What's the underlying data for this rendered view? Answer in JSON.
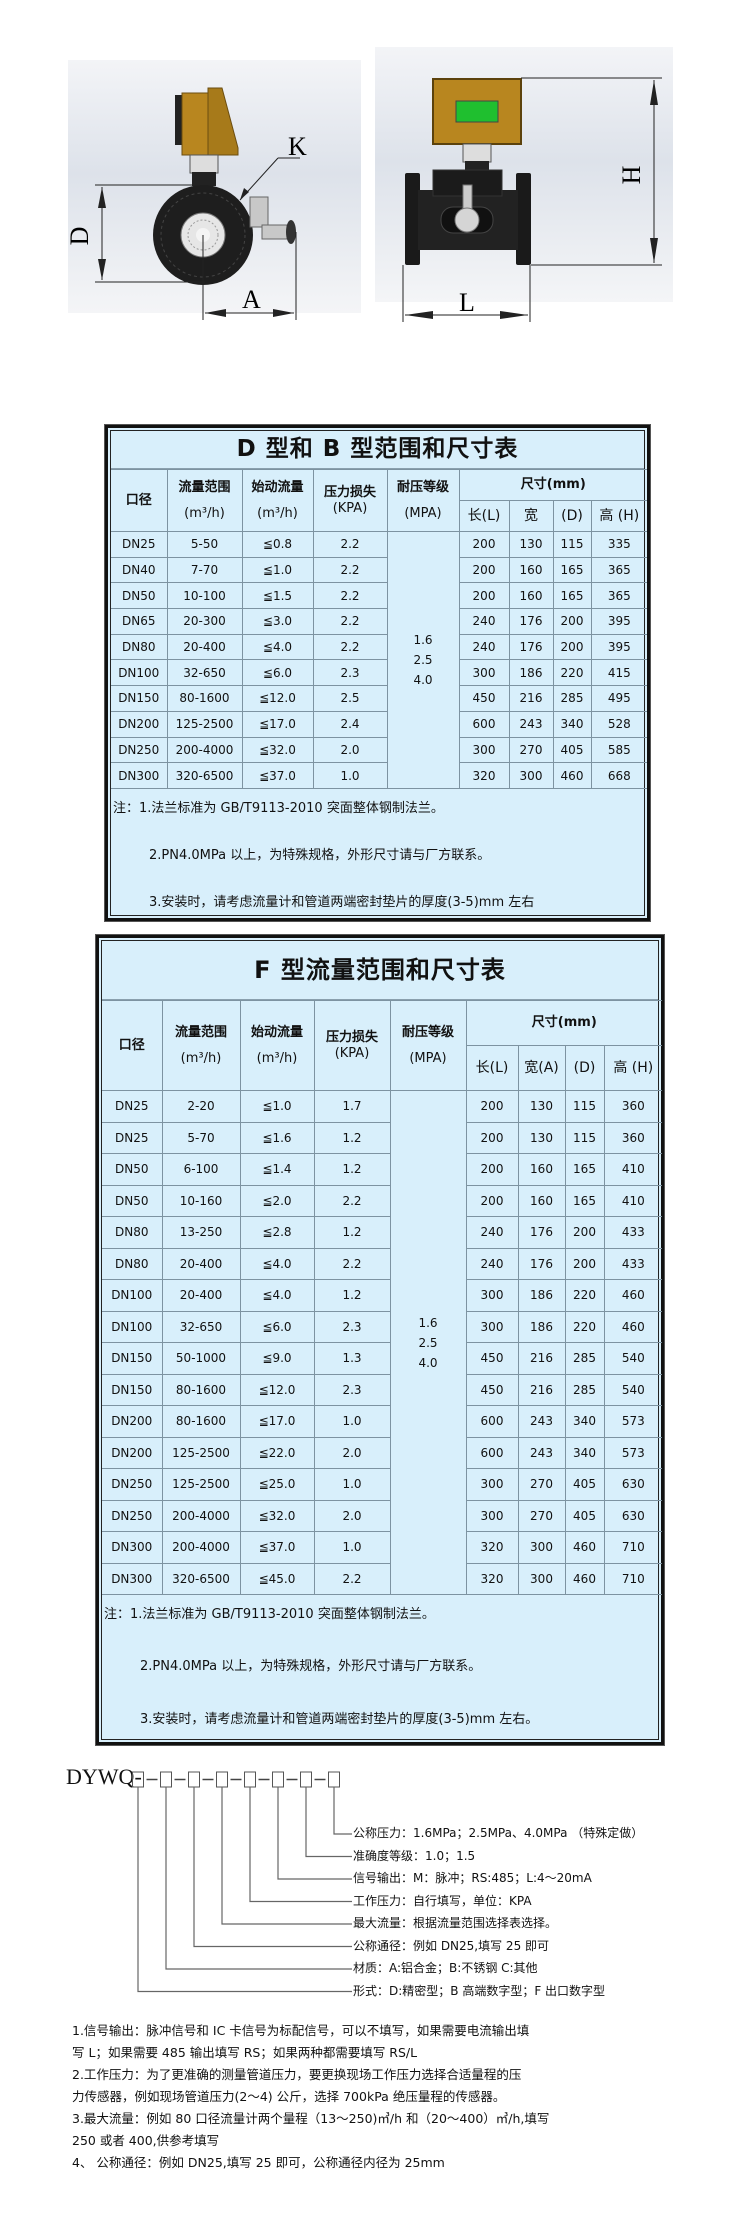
{
  "drawings": {
    "side_view_labels": {
      "d": "D",
      "k": "K",
      "a": "A"
    },
    "front_view_labels": {
      "h": "H",
      "l": "L"
    },
    "colors": {
      "housing": "#b8861f",
      "display": "#1fbf2f",
      "body": "#1a1a1a",
      "backdrop": "#e4e8ee"
    }
  },
  "d_table": {
    "title": "D 型和 B 型范围和尺寸表",
    "headers": {
      "caliber": "口径",
      "flow_range": "流量范围",
      "flow_range_unit": "(m³/h)",
      "start_flow": "始动流量",
      "start_flow_unit": "(m³/h)",
      "pressure_loss": "压力损失",
      "pressure_loss_unit": "(KPA)",
      "pressure_grade": "耐压等级",
      "pressure_grade_unit": "(MPA)",
      "size": "尺寸(mm)",
      "length": "长(L)",
      "width": "宽",
      "d": "(D)",
      "height": "高 (H)"
    },
    "pressure_levels": [
      "1.6",
      "2.5",
      "4.0"
    ],
    "rows": [
      [
        "DN25",
        "5-50",
        "≦0.8",
        "2.2",
        "200",
        "130",
        "115",
        "335"
      ],
      [
        "DN40",
        "7-70",
        "≦1.0",
        "2.2",
        "200",
        "160",
        "165",
        "365"
      ],
      [
        "DN50",
        "10-100",
        "≦1.5",
        "2.2",
        "200",
        "160",
        "165",
        "365"
      ],
      [
        "DN65",
        "20-300",
        "≦3.0",
        "2.2",
        "240",
        "176",
        "200",
        "395"
      ],
      [
        "DN80",
        "20-400",
        "≦4.0",
        "2.2",
        "240",
        "176",
        "200",
        "395"
      ],
      [
        "DN100",
        "32-650",
        "≦6.0",
        "2.3",
        "300",
        "186",
        "220",
        "415"
      ],
      [
        "DN150",
        "80-1600",
        "≦12.0",
        "2.5",
        "450",
        "216",
        "285",
        "495"
      ],
      [
        "DN200",
        "125-2500",
        "≦17.0",
        "2.4",
        "600",
        "243",
        "340",
        "528"
      ],
      [
        "DN250",
        "200-4000",
        "≦32.0",
        "2.0",
        "300",
        "270",
        "405",
        "585"
      ],
      [
        "DN300",
        "320-6500",
        "≦37.0",
        "1.0",
        "320",
        "300",
        "460",
        "668"
      ]
    ],
    "notes": [
      "注：1.法兰标准为 GB/T9113-2010 突面整体钢制法兰。",
      "2.PN4.0MPa 以上，为特殊规格，外形尺寸请与厂方联系。",
      "3.安装时，请考虑流量计和管道两端密封垫片的厚度(3-5)mm 左右"
    ]
  },
  "f_table": {
    "title": "F 型流量范围和尺寸表",
    "headers": {
      "caliber": "口径",
      "flow_range": "流量范围",
      "flow_range_unit": "(m³/h)",
      "start_flow": "始动流量",
      "start_flow_unit": "(m³/h)",
      "pressure_loss": "压力损失",
      "pressure_loss_unit": "(KPA)",
      "pressure_grade": "耐压等级",
      "pressure_grade_unit": "(MPA)",
      "size": "尺寸(mm)",
      "length": "长(L)",
      "width": "宽(A)",
      "d": "(D)",
      "height": "高 (H)"
    },
    "pressure_levels": [
      "1.6",
      "2.5",
      "4.0"
    ],
    "rows": [
      [
        "DN25",
        "2-20",
        "≦1.0",
        "1.7",
        "200",
        "130",
        "115",
        "360"
      ],
      [
        "DN25",
        "5-70",
        "≦1.6",
        "1.2",
        "200",
        "130",
        "115",
        "360"
      ],
      [
        "DN50",
        "6-100",
        "≦1.4",
        "1.2",
        "200",
        "160",
        "165",
        "410"
      ],
      [
        "DN50",
        "10-160",
        "≦2.0",
        "2.2",
        "200",
        "160",
        "165",
        "410"
      ],
      [
        "DN80",
        "13-250",
        "≦2.8",
        "1.2",
        "240",
        "176",
        "200",
        "433"
      ],
      [
        "DN80",
        "20-400",
        "≦4.0",
        "2.2",
        "240",
        "176",
        "200",
        "433"
      ],
      [
        "DN100",
        "20-400",
        "≦4.0",
        "1.2",
        "300",
        "186",
        "220",
        "460"
      ],
      [
        "DN100",
        "32-650",
        "≦6.0",
        "2.3",
        "300",
        "186",
        "220",
        "460"
      ],
      [
        "DN150",
        "50-1000",
        "≦9.0",
        "1.3",
        "450",
        "216",
        "285",
        "540"
      ],
      [
        "DN150",
        "80-1600",
        "≦12.0",
        "2.3",
        "450",
        "216",
        "285",
        "540"
      ],
      [
        "DN200",
        "80-1600",
        "≦17.0",
        "1.0",
        "600",
        "243",
        "340",
        "573"
      ],
      [
        "DN200",
        "125-2500",
        "≦22.0",
        "2.0",
        "600",
        "243",
        "340",
        "573"
      ],
      [
        "DN250",
        "125-2500",
        "≦25.0",
        "1.0",
        "300",
        "270",
        "405",
        "630"
      ],
      [
        "DN250",
        "200-4000",
        "≦32.0",
        "2.0",
        "300",
        "270",
        "405",
        "630"
      ],
      [
        "DN300",
        "200-4000",
        "≦37.0",
        "1.0",
        "320",
        "300",
        "460",
        "710"
      ],
      [
        "DN300",
        "320-6500",
        "≦45.0",
        "2.2",
        "320",
        "300",
        "460",
        "710"
      ]
    ],
    "notes": [
      "注：1.法兰标准为 GB/T9113-2010 突面整体钢制法兰。",
      "2.PN4.0MPa 以上，为特殊规格，外形尺寸请与厂方联系。",
      "3.安装时，请考虑流量计和管道两端密封垫片的厚度(3-5)mm 左右。"
    ]
  },
  "model_code": {
    "prefix": "DYWQ",
    "labels": [
      "公称压力：1.6MPa；2.5MPa、4.0MPa （特殊定做）",
      "准确度等级：1.0；1.5",
      "信号输出：M：脉冲；RS:485；L:4～20mA",
      "工作压力：自行填写，单位：KPA",
      "最大流量：根据流量范围选择表选择。",
      "公称通径：例如 DN25,填写 25 即可",
      "材质：A:铝合金；B:不锈钢 C:其他",
      "形式：D:精密型；B 高端数字型；F 出口数字型"
    ]
  },
  "bottom_notes": [
    "1.信号输出：脉冲信号和 IC 卡信号为标配信号，可以不填写，如果需要电流输出填",
    "写 L；如果需要 485 输出填写 RS；如果两种都需要填写 RS/L",
    "2.工作压力：为了更准确的测量管道压力，要更换现场工作压力选择合适量程的压",
    "力传感器，例如现场管道压力(2～4) 公斤，选择 700kPa 绝压量程的传感器。",
    "3.最大流量：例如 80 口径流量计两个量程（13～250)㎥/h 和（20～400）㎥/h,填写",
    "250 或者 400,供参考填写",
    "4、 公称通径：例如 DN25,填写 25 即可，公称通径内径为 25mm"
  ]
}
